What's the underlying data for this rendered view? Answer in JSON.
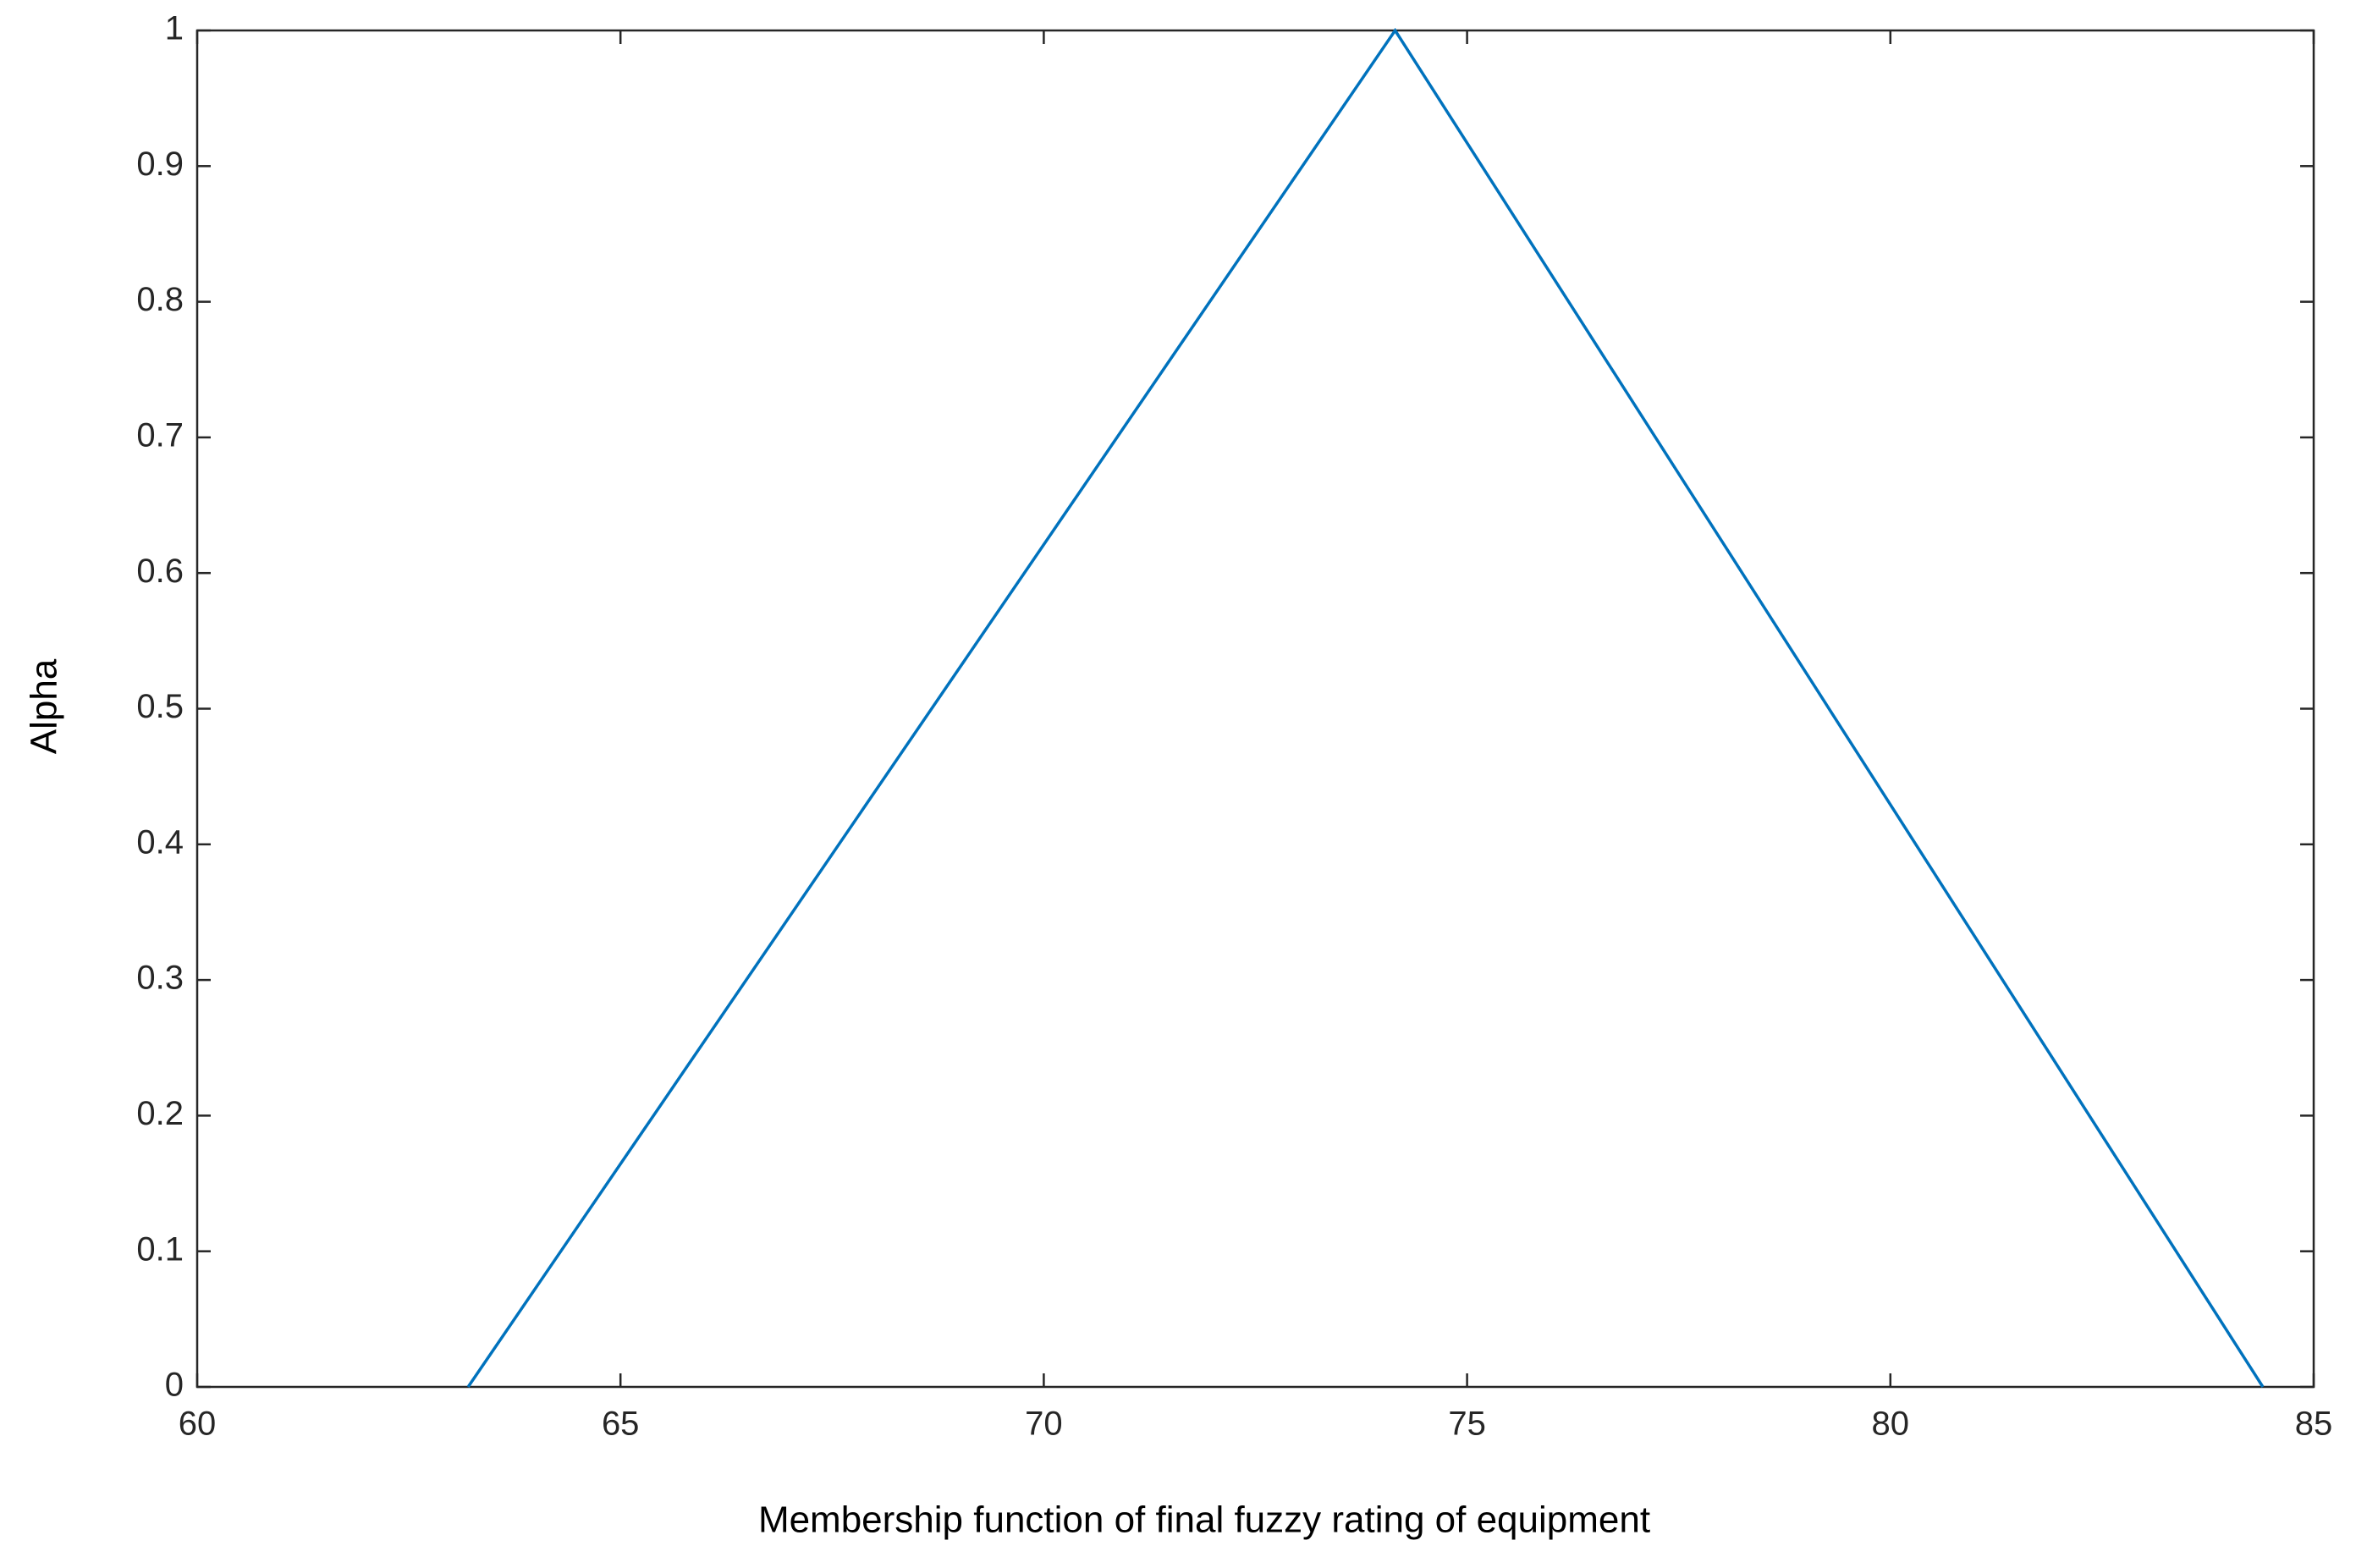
{
  "chart_data": {
    "type": "line",
    "x_label": "Membership function of final fuzzy rating of equipment",
    "y_label": "Alpha",
    "series": [
      {
        "x": [
          63.2,
          74.15,
          84.4
        ],
        "values": [
          0,
          1,
          0
        ],
        "color": "#0072bd"
      }
    ],
    "xlim": [
      60,
      85
    ],
    "xticks": [
      60,
      65,
      70,
      75,
      80,
      85
    ],
    "ylim": [
      0,
      1
    ],
    "yticks": [
      0,
      0.1,
      0.2,
      0.3,
      0.4,
      0.5,
      0.6,
      0.7,
      0.8,
      0.9,
      1
    ],
    "grid": false
  }
}
